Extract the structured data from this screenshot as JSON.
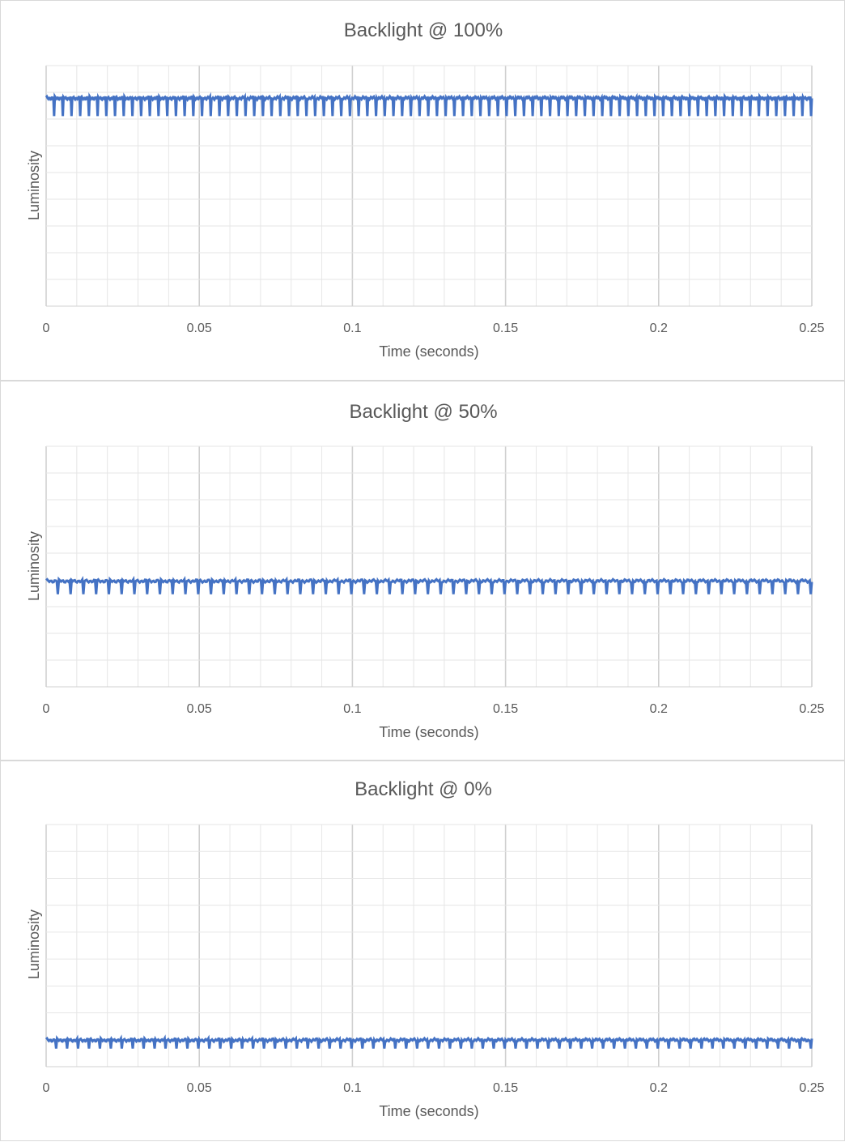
{
  "chart_data": [
    {
      "type": "line",
      "title": "Backlight @ 100%",
      "xlabel": "Time (seconds)",
      "ylabel": "Luminosity",
      "xlim": [
        0,
        0.25
      ],
      "ylim": [
        0,
        1
      ],
      "x_ticks": [
        "0",
        "0.05",
        "0.1",
        "0.15",
        "0.2",
        "0.25"
      ],
      "grid": true,
      "legend": "none",
      "color": "#4472C4",
      "signal": {
        "baseline": 0.865,
        "dip_depth": 0.075,
        "dip_count": 88,
        "duration": 0.25
      }
    },
    {
      "type": "line",
      "title": "Backlight @ 50%",
      "xlabel": "Time (seconds)",
      "ylabel": "Luminosity",
      "xlim": [
        0,
        0.25
      ],
      "ylim": [
        0,
        1
      ],
      "x_ticks": [
        "0",
        "0.05",
        "0.1",
        "0.15",
        "0.2",
        "0.25"
      ],
      "grid": true,
      "legend": "none",
      "color": "#4472C4",
      "signal": {
        "baseline": 0.44,
        "dip_depth": 0.055,
        "dip_count": 60,
        "duration": 0.25
      }
    },
    {
      "type": "line",
      "title": "Backlight @ 0%",
      "xlabel": "Time (seconds)",
      "ylabel": "Luminosity",
      "xlim": [
        0,
        0.25
      ],
      "ylim": [
        0,
        1
      ],
      "x_ticks": [
        "0",
        "0.05",
        "0.1",
        "0.15",
        "0.2",
        "0.25"
      ],
      "grid": true,
      "legend": "none",
      "color": "#4472C4",
      "signal": {
        "baseline": 0.11,
        "dip_depth": 0.035,
        "dip_count": 70,
        "duration": 0.25
      }
    }
  ]
}
